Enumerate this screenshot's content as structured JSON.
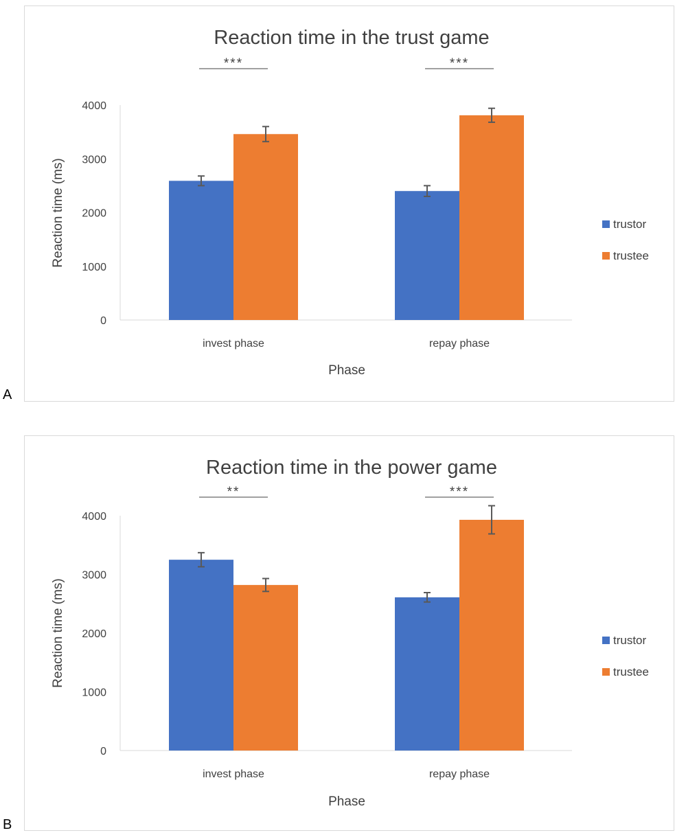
{
  "panels": [
    {
      "letter": "A"
    },
    {
      "letter": "B"
    }
  ],
  "chart_data": [
    {
      "type": "bar",
      "title": "Reaction time in the trust game",
      "xlabel": "Phase",
      "ylabel": "Reaction time (ms)",
      "ylim": [
        0,
        4000
      ],
      "yticks": [
        0,
        1000,
        2000,
        3000,
        4000
      ],
      "categories": [
        "invest phase",
        "repay phase"
      ],
      "series": [
        {
          "name": "trustor",
          "color": "#4472c4",
          "values": [
            2590,
            2400
          ],
          "errors": [
            90,
            100
          ]
        },
        {
          "name": "trustee",
          "color": "#ed7d31",
          "values": [
            3460,
            3810
          ],
          "errors": [
            140,
            130
          ]
        }
      ],
      "significance": [
        "***",
        "***"
      ],
      "grid": false,
      "legend": "right"
    },
    {
      "type": "bar",
      "title": "Reaction time in the power game",
      "xlabel": "Phase",
      "ylabel": "Reaction time (ms)",
      "ylim": [
        0,
        4000
      ],
      "yticks": [
        0,
        1000,
        2000,
        3000,
        4000
      ],
      "categories": [
        "invest phase",
        "repay phase"
      ],
      "series": [
        {
          "name": "trustor",
          "color": "#4472c4",
          "values": [
            3250,
            2610
          ],
          "errors": [
            120,
            80
          ]
        },
        {
          "name": "trustee",
          "color": "#ed7d31",
          "values": [
            2820,
            3930
          ],
          "errors": [
            110,
            240
          ]
        }
      ],
      "significance": [
        "**",
        "***"
      ],
      "grid": false,
      "legend": "right"
    }
  ]
}
